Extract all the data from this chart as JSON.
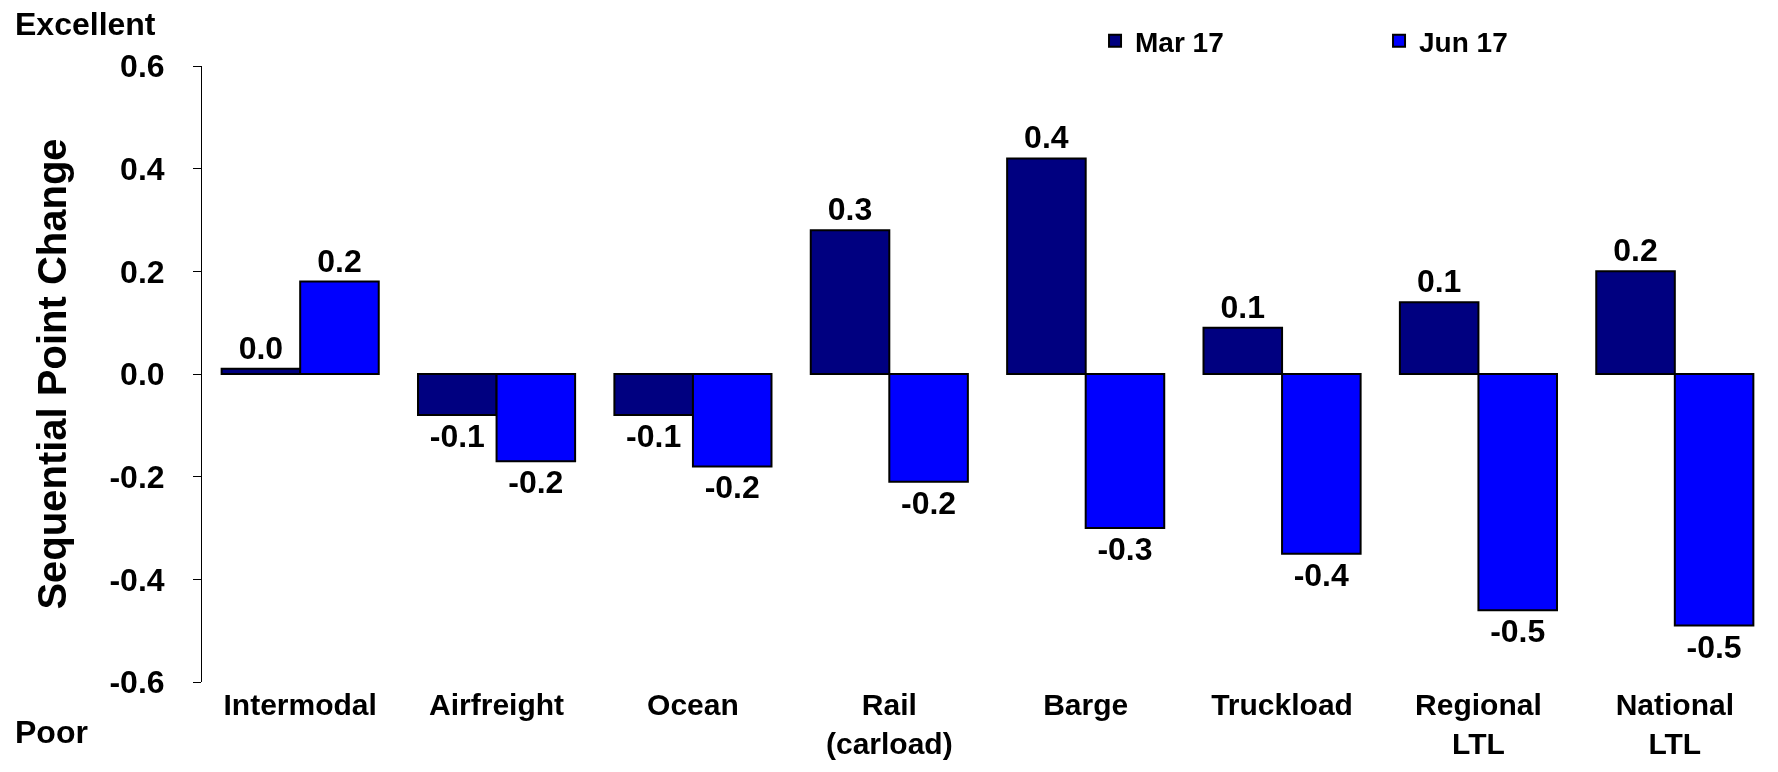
{
  "chart_data": {
    "type": "bar",
    "categories": [
      "Intermodal",
      "Airfreight",
      "Ocean",
      "Rail\n(carload)",
      "Barge",
      "Truckload",
      "Regional\nLTL",
      "National\nLTL"
    ],
    "series": [
      {
        "name": "Mar 17",
        "color": "#000080",
        "values": [
          0.01,
          -0.08,
          -0.08,
          0.28,
          0.42,
          0.09,
          0.14,
          0.2
        ],
        "value_labels": [
          "0.0",
          "-0.1",
          "-0.1",
          "0.3",
          "0.4",
          "0.1",
          "0.1",
          "0.2"
        ]
      },
      {
        "name": "Jun 17",
        "color": "#0000ff",
        "values": [
          0.18,
          -0.17,
          -0.18,
          -0.21,
          -0.3,
          -0.35,
          -0.46,
          -0.49
        ],
        "value_labels": [
          "0.2",
          "-0.2",
          "-0.2",
          "-0.2",
          "-0.3",
          "-0.4",
          "-0.5",
          "-0.5"
        ]
      }
    ],
    "ylabel": "Sequential Point Change",
    "ylim": [
      -0.6,
      0.6
    ],
    "yticks": [
      -0.6,
      -0.4,
      -0.2,
      {
        "value": 0,
        "label": "0.0"
      },
      0.2,
      0.4,
      0.6
    ],
    "annotations": [
      "Excellent",
      "Poor"
    ],
    "legend": "top right",
    "grid": false
  }
}
